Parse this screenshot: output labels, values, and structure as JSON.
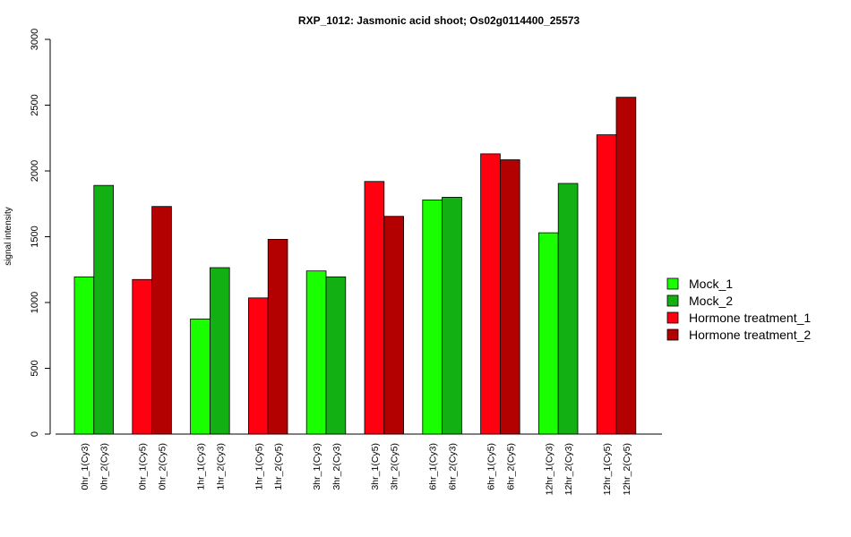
{
  "chart_data": {
    "type": "bar",
    "title": "RXP_1012: Jasmonic acid shoot; Os02g0114400_25573",
    "xlabel": "",
    "ylabel": "signal intensity",
    "ylim": [
      0,
      3000
    ],
    "yticks": [
      0,
      500,
      1000,
      1500,
      2000,
      2500,
      3000
    ],
    "grid": false,
    "legend_position": "right",
    "categories": [
      "0hr_1(Cy3)",
      "0hr_2(Cy3)",
      "0hr_1(Cy5)",
      "0hr_2(Cy5)",
      "1hr_1(Cy3)",
      "1hr_2(Cy3)",
      "1hr_1(Cy5)",
      "1hr_2(Cy5)",
      "3hr_1(Cy3)",
      "3hr_2(Cy3)",
      "3hr_1(Cy5)",
      "3hr_2(Cy5)",
      "6hr_1(Cy3)",
      "6hr_2(Cy3)",
      "6hr_1(Cy5)",
      "6hr_2(Cy5)",
      "12hr_1(Cy3)",
      "12hr_2(Cy3)",
      "12hr_1(Cy5)",
      "12hr_2(Cy5)"
    ],
    "values": [
      1195,
      1890,
      1175,
      1730,
      875,
      1265,
      1035,
      1480,
      1240,
      1195,
      1920,
      1655,
      1780,
      1800,
      2130,
      2085,
      1530,
      1905,
      2275,
      2560
    ],
    "series_index": [
      0,
      1,
      2,
      3,
      0,
      1,
      2,
      3,
      0,
      1,
      2,
      3,
      0,
      1,
      2,
      3,
      0,
      1,
      2,
      3
    ],
    "series": [
      {
        "name": "Mock_1",
        "color": "#19ff00"
      },
      {
        "name": "Mock_2",
        "color": "#12b012"
      },
      {
        "name": "Hormone treatment_1",
        "color": "#ff0010"
      },
      {
        "name": "Hormone treatment_2",
        "color": "#b30000"
      }
    ]
  }
}
